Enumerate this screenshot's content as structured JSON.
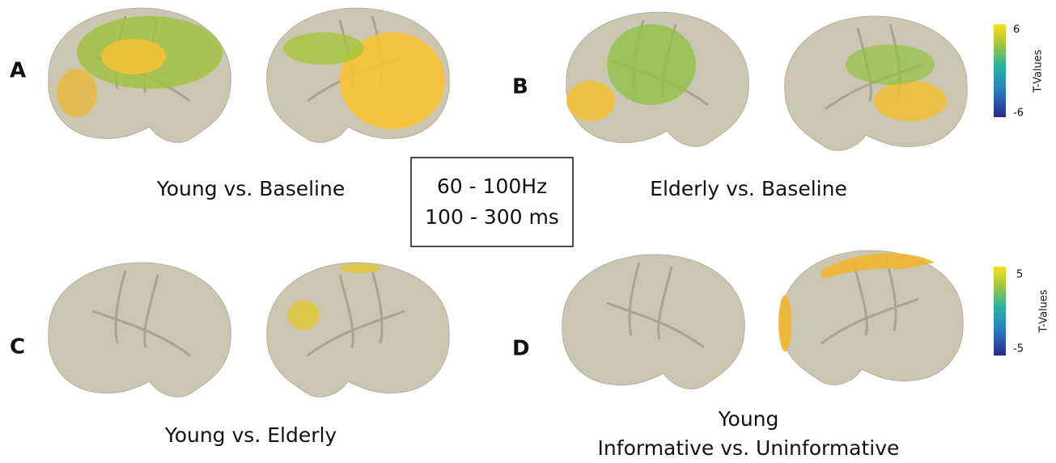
{
  "panels": [
    {
      "letter": "A",
      "caption": [
        "Young vs. Baseline"
      ]
    },
    {
      "letter": "B",
      "caption": [
        "Elderly vs. Baseline"
      ]
    },
    {
      "letter": "C",
      "caption": [
        "Young vs. Elderly"
      ]
    },
    {
      "letter": "D",
      "caption": [
        "Young",
        "Informative vs. Uninformative"
      ]
    }
  ],
  "condition_box": [
    "60 - 100Hz",
    "100 - 300 ms"
  ],
  "colorbars": [
    {
      "label": "T-Values",
      "max": "6",
      "min": "-6"
    },
    {
      "label": "T-Values",
      "max": "5",
      "min": "-5"
    }
  ]
}
